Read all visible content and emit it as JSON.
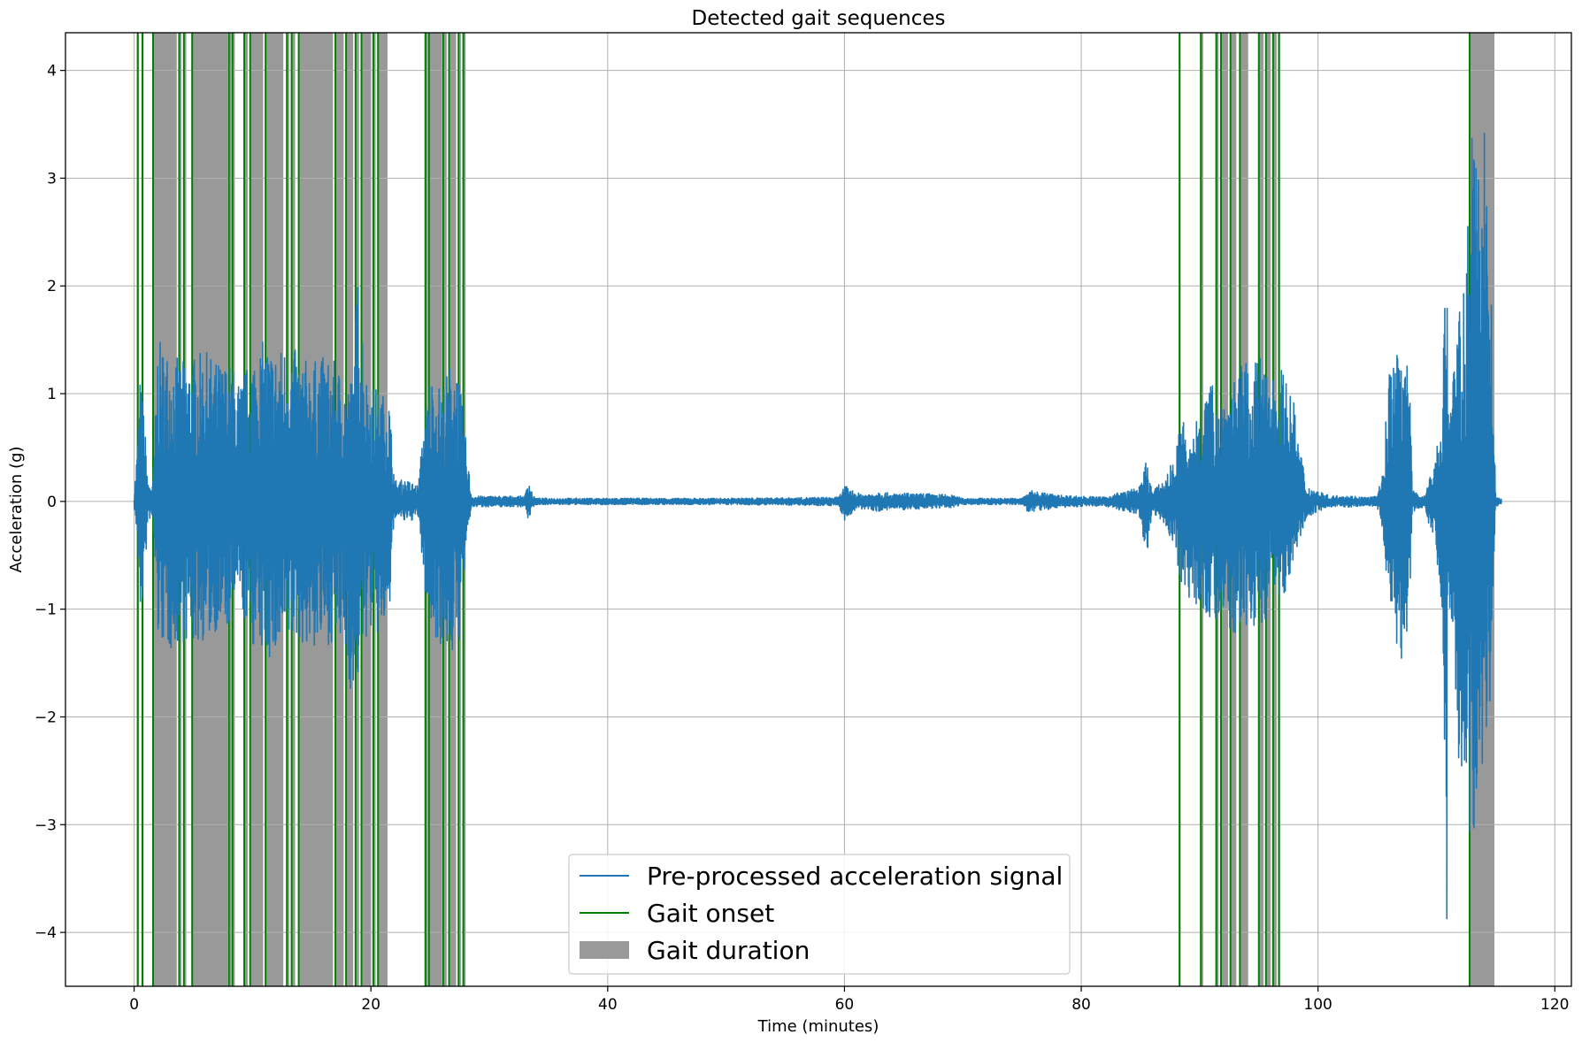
{
  "chart_data": {
    "type": "line",
    "title": "Detected gait sequences",
    "xlabel": "Time (minutes)",
    "ylabel": "Acceleration (g)",
    "xlim": [
      -5.8,
      121.4
    ],
    "ylim": [
      -4.5,
      4.35
    ],
    "x_ticks": [
      0,
      20,
      40,
      60,
      80,
      100,
      120
    ],
    "x_tick_labels": [
      "0",
      "20",
      "40",
      "60",
      "80",
      "100",
      "120"
    ],
    "y_ticks": [
      -4,
      -3,
      -2,
      -1,
      0,
      1,
      2,
      3,
      4
    ],
    "y_tick_labels": [
      "−4",
      "−3",
      "−2",
      "−1",
      "0",
      "1",
      "2",
      "3",
      "4"
    ],
    "grid": true,
    "legend_position": "bottom-center",
    "colors": {
      "signal": "#1f77b4",
      "onset": "#008000",
      "duration": "#999999",
      "grid": "#b0b0b0"
    },
    "series": [
      {
        "name": "Pre-processed acceleration signal",
        "kind": "line",
        "envelope": {
          "time": [
            0,
            0.3,
            0.5,
            0.8,
            1.2,
            1.6,
            2.0,
            3.0,
            4.0,
            5.0,
            6.0,
            7.0,
            8.0,
            8.6,
            9.0,
            10.0,
            11.0,
            12.0,
            13.0,
            14.0,
            15.0,
            16.0,
            17.0,
            18.0,
            18.5,
            19.0,
            19.5,
            20.0,
            20.5,
            21.0,
            21.5,
            22.0,
            23.0,
            24.0,
            24.5,
            25.0,
            26.0,
            27.0,
            27.5,
            28.0,
            28.5,
            29.0,
            33.0,
            33.3,
            33.7,
            34.0,
            40.0,
            50.0,
            59.5,
            60.0,
            61.0,
            62.0,
            63.0,
            64.0,
            65.0,
            66.0,
            67.0,
            67.5,
            68.0,
            69.0,
            70.0,
            75.0,
            75.5,
            76.0,
            77.0,
            78.0,
            80.0,
            82.0,
            83.0,
            84.0,
            85.0,
            85.5,
            86.0,
            87.0,
            88.0,
            88.5,
            89.0,
            90.0,
            91.0,
            92.0,
            93.0,
            94.0,
            95.0,
            96.0,
            97.0,
            98.0,
            99.0,
            100.0,
            101.0,
            102.0,
            104.0,
            105.0,
            105.5,
            106.0,
            107.0,
            107.5,
            108.0,
            109.0,
            110.0,
            110.5,
            110.9,
            111.0,
            111.2,
            111.5,
            112.0,
            112.5,
            113.0,
            113.5,
            114.0,
            114.5,
            115.0,
            115.5
          ],
          "upper": [
            0.05,
            0.6,
            1.15,
            0.9,
            0.15,
            0.2,
            1.5,
            1.4,
            1.3,
            1.35,
            1.4,
            1.3,
            1.3,
            1.2,
            1.1,
            1.4,
            1.5,
            1.4,
            1.5,
            1.35,
            1.3,
            1.35,
            1.3,
            1.1,
            1.2,
            2.4,
            1.2,
            1.1,
            1.05,
            1.0,
            1.05,
            0.2,
            0.2,
            0.15,
            0.8,
            1.2,
            1.05,
            1.4,
            1.1,
            0.6,
            0.05,
            0.05,
            0.05,
            0.23,
            0.05,
            0.03,
            0.03,
            0.03,
            0.04,
            0.15,
            0.08,
            0.07,
            0.1,
            0.07,
            0.08,
            0.07,
            0.08,
            0.06,
            0.07,
            0.06,
            0.03,
            0.03,
            0.1,
            0.1,
            0.08,
            0.06,
            0.05,
            0.04,
            0.08,
            0.1,
            0.15,
            0.4,
            0.1,
            0.2,
            0.45,
            0.9,
            0.4,
            1.0,
            1.1,
            1.0,
            1.2,
            1.3,
            1.35,
            1.2,
            1.25,
            0.9,
            0.15,
            0.1,
            0.05,
            0.06,
            0.04,
            0.05,
            0.3,
            1.3,
            1.4,
            1.9,
            0.1,
            0.05,
            0.5,
            0.9,
            3.1,
            1.1,
            1.0,
            1.4,
            1.8,
            2.2,
            3.4,
            3.0,
            3.9,
            2.6,
            0.05,
            0.02
          ],
          "lower": [
            -0.05,
            -0.4,
            -1.1,
            -0.9,
            -0.15,
            -0.2,
            -1.3,
            -1.4,
            -1.3,
            -1.35,
            -1.3,
            -1.2,
            -1.2,
            -0.9,
            -1.0,
            -1.35,
            -1.45,
            -1.5,
            -1.35,
            -1.3,
            -1.4,
            -1.35,
            -1.3,
            -1.5,
            -2.05,
            -1.6,
            -1.3,
            -1.2,
            -1.3,
            -1.2,
            -1.25,
            -0.15,
            -0.2,
            -0.15,
            -0.8,
            -1.2,
            -1.35,
            -1.45,
            -1.3,
            -0.5,
            -0.05,
            -0.05,
            -0.05,
            -0.18,
            -0.05,
            -0.03,
            -0.03,
            -0.03,
            -0.04,
            -0.18,
            -0.08,
            -0.07,
            -0.1,
            -0.07,
            -0.08,
            -0.07,
            -0.08,
            -0.06,
            -0.07,
            -0.06,
            -0.03,
            -0.03,
            -0.1,
            -0.1,
            -0.08,
            -0.06,
            -0.05,
            -0.04,
            -0.08,
            -0.1,
            -0.15,
            -0.55,
            -0.1,
            -0.2,
            -0.5,
            -0.8,
            -0.9,
            -1.0,
            -1.1,
            -1.2,
            -1.25,
            -1.2,
            -1.2,
            -1.0,
            -0.95,
            -0.5,
            -0.15,
            -0.1,
            -0.05,
            -0.06,
            -0.04,
            -0.05,
            -0.3,
            -1.0,
            -1.5,
            -1.6,
            -0.1,
            -0.05,
            -0.5,
            -1.0,
            -4.05,
            -1.0,
            -1.0,
            -2.0,
            -2.5,
            -2.9,
            -3.4,
            -2.8,
            -2.4,
            -2.0,
            -0.05,
            -0.02
          ]
        }
      },
      {
        "name": "Gait onset",
        "kind": "vlines",
        "x": [
          0.3,
          0.7,
          1.6,
          3.8,
          4.2,
          4.9,
          8.0,
          8.3,
          9.3,
          9.8,
          11.1,
          12.9,
          13.3,
          13.9,
          17.0,
          17.9,
          18.7,
          19.2,
          20.2,
          20.6,
          24.6,
          24.9,
          26.1,
          26.6,
          27.4,
          27.8,
          88.3,
          90.1,
          91.4,
          91.8,
          92.6,
          93.4,
          95.0,
          95.6,
          96.2,
          96.7,
          112.8
        ]
      },
      {
        "name": "Gait duration",
        "kind": "spans",
        "spans": [
          [
            0.3,
            0.4
          ],
          [
            0.7,
            0.8
          ],
          [
            1.6,
            3.6
          ],
          [
            3.8,
            4.0
          ],
          [
            4.2,
            4.4
          ],
          [
            4.9,
            7.9
          ],
          [
            8.0,
            8.2
          ],
          [
            8.3,
            8.5
          ],
          [
            9.3,
            9.6
          ],
          [
            9.8,
            10.9
          ],
          [
            11.1,
            12.6
          ],
          [
            12.9,
            13.1
          ],
          [
            13.3,
            13.6
          ],
          [
            13.9,
            16.8
          ],
          [
            17.0,
            17.7
          ],
          [
            17.9,
            18.5
          ],
          [
            18.7,
            19.0
          ],
          [
            19.2,
            20.0
          ],
          [
            20.2,
            20.4
          ],
          [
            20.6,
            21.4
          ],
          [
            24.6,
            24.8
          ],
          [
            24.9,
            26.0
          ],
          [
            26.1,
            26.4
          ],
          [
            26.6,
            27.2
          ],
          [
            27.4,
            27.6
          ],
          [
            27.8,
            28.0
          ],
          [
            88.3,
            88.4
          ],
          [
            90.1,
            90.3
          ],
          [
            91.4,
            91.6
          ],
          [
            91.8,
            92.4
          ],
          [
            92.6,
            93.1
          ],
          [
            93.4,
            94.1
          ],
          [
            95.0,
            95.4
          ],
          [
            95.6,
            96.0
          ],
          [
            96.2,
            96.5
          ],
          [
            96.7,
            96.8
          ],
          [
            112.8,
            114.9
          ]
        ]
      }
    ]
  }
}
